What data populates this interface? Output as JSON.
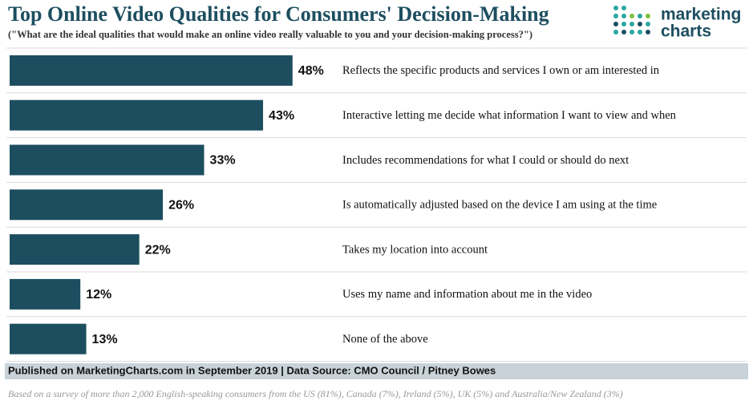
{
  "logo": {
    "line1": "marketing",
    "line2": "charts"
  },
  "chart_data": {
    "type": "bar",
    "orientation": "horizontal",
    "title": "Top Online Video Qualities for Consumers' Decision-Making",
    "subtitle": "(\"What are the ideal qualities that would make an online video really valuable to you and your decision-making process?\")",
    "categories": [
      "Reflects the specific products and services I own or am interested in",
      "Interactive letting me decide what information I want to view and when",
      "Includes recommendations for what I could or should do next",
      "Is automatically adjusted based on the device I am using at the time",
      "Takes my location into account",
      "Uses my name and information about me in the video",
      "None of the above"
    ],
    "values": [
      48,
      43,
      33,
      26,
      22,
      12,
      13
    ],
    "value_labels": [
      "48%",
      "43%",
      "33%",
      "26%",
      "22%",
      "12%",
      "13%"
    ],
    "color": "#1d4e60",
    "source": "Published on MarketingCharts.com in September 2019 | Data Source: CMO Council / Pitney Bowes",
    "note": "Based on a survey of more than 2,000 English-speaking consumers from the US (81%), Canada (7%), Ireland (5%), UK (5%) and Australia/New Zealand (3%)"
  }
}
